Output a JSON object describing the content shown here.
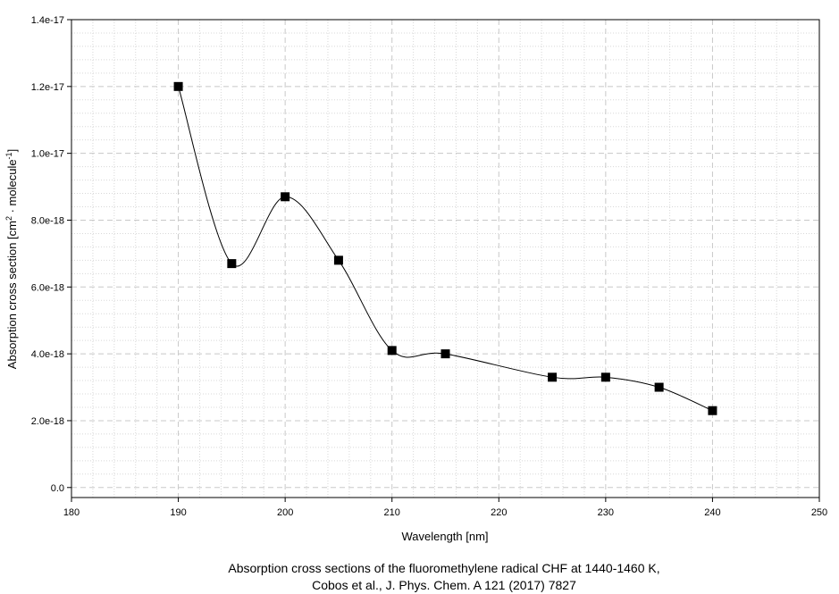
{
  "chart_data": {
    "type": "scatter",
    "xlabel": "Wavelength [nm]",
    "ylabel": {
      "prefix": "Absorption cross section [cm",
      "sup1": "2",
      "middle": " · molecule",
      "sup2": "-1",
      "suffix": "]"
    },
    "caption": {
      "line1": "Absorption cross sections of the fluoromethylene radical CHF at 1440-1460 K,",
      "line2": "Cobos et al., J. Phys. Chem. A 121 (2017) 7827"
    },
    "xlim": [
      180,
      250
    ],
    "ylim": [
      -3e-19,
      1.4e-17
    ],
    "x_ticks": [
      180,
      190,
      200,
      210,
      220,
      230,
      240,
      250
    ],
    "x_tick_labels": [
      "180",
      "190",
      "200",
      "210",
      "220",
      "230",
      "240",
      "250"
    ],
    "y_ticks": [
      0,
      2e-18,
      4e-18,
      6e-18,
      8e-18,
      1e-17,
      1.2e-17,
      1.4e-17
    ],
    "y_tick_labels": [
      "0.0",
      "2.0e-18",
      "4.0e-18",
      "6.0e-18",
      "8.0e-18",
      "1.0e-17",
      "1.2e-17",
      "1.4e-17"
    ],
    "grid": true,
    "marker": "square",
    "smooth_line": true,
    "series": [
      {
        "x": [
          190,
          195,
          200,
          205,
          210,
          215,
          225,
          230,
          235,
          240
        ],
        "y": [
          1.2e-17,
          6.7e-18,
          8.7e-18,
          6.8e-18,
          4.1e-18,
          4e-18,
          3.3e-18,
          3.3e-18,
          3e-18,
          2.3e-18
        ]
      }
    ],
    "colors": {
      "line": "#000000",
      "marker": "#000000",
      "grid_major": "#c8c8c8",
      "grid_minor": "#d8d8d8"
    }
  }
}
